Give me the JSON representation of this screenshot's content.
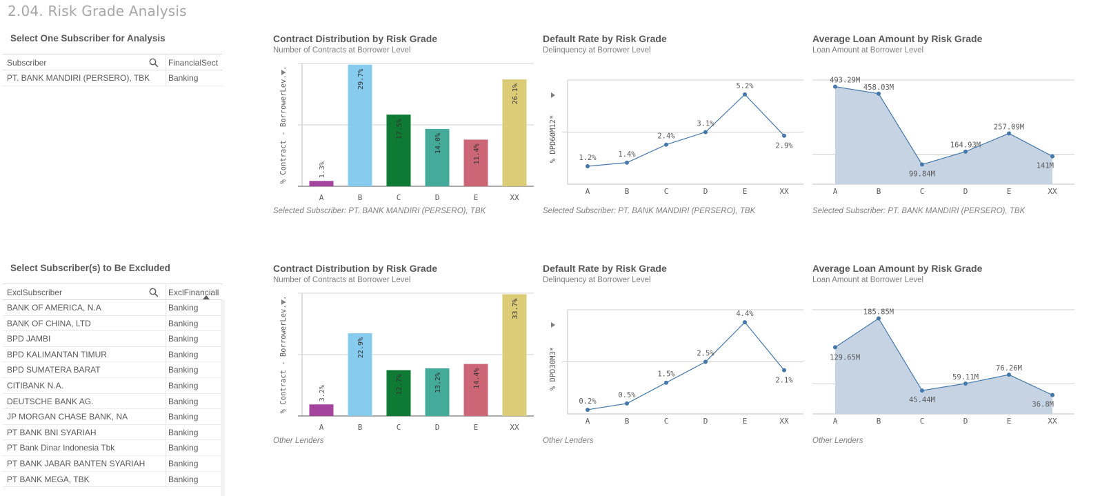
{
  "page": {
    "title": "2.04. Risk Grade Analysis"
  },
  "colors": {
    "A": "#a4449e",
    "B": "#87ccee",
    "C": "#0f7a34",
    "D": "#44aa99",
    "E": "#cc6677",
    "XX": "#ddcc77",
    "line": "#4477aa",
    "area": "#c5d3e3"
  },
  "selector1": {
    "title": "Select One Subscriber for Analysis",
    "col1": "Subscriber",
    "col2": "FinancialSect",
    "rows": [
      {
        "name": "PT. BANK MANDIRI (PERSERO), TBK",
        "sector": "Banking"
      }
    ]
  },
  "selector2": {
    "title": "Select Subscriber(s) to Be Excluded",
    "col1": "ExclSubscriber",
    "col2": "ExclFinanciall",
    "rows": [
      {
        "name": "BANK OF AMERICA, N.A",
        "sector": "Banking"
      },
      {
        "name": "BANK OF CHINA, LTD",
        "sector": "Banking"
      },
      {
        "name": "BPD JAMBI",
        "sector": "Banking"
      },
      {
        "name": "BPD KALIMANTAN TIMUR",
        "sector": "Banking"
      },
      {
        "name": "BPD SUMATERA BARAT",
        "sector": "Banking"
      },
      {
        "name": "CITIBANK N.A.",
        "sector": "Banking"
      },
      {
        "name": "DEUTSCHE BANK AG.",
        "sector": "Banking"
      },
      {
        "name": "JP MORGAN CHASE BANK, NA",
        "sector": "Banking"
      },
      {
        "name": "PT BANK BNI SYARIAH",
        "sector": "Banking"
      },
      {
        "name": "PT Bank Dinar Indonesia Tbk",
        "sector": "Banking"
      },
      {
        "name": "PT BANK JABAR BANTEN SYARIAH",
        "sector": "Banking"
      },
      {
        "name": "PT BANK MEGA, TBK",
        "sector": "Banking"
      }
    ]
  },
  "charts": {
    "bar1": {
      "title": "Contract Distribution by Risk Grade",
      "subtitle": "Number of Contracts at Borrower Level",
      "footer": "Selected Subscriber: PT. BANK MANDIRI (PERSERO), TBK",
      "ylabel": "% Contract - BorrowerLev..."
    },
    "line1": {
      "title": "Default Rate by Risk Grade",
      "subtitle": "Delinquency at Borrower Level",
      "footer": "Selected Subscriber: PT. BANK MANDIRI (PERSERO), TBK",
      "ylabel": "% DPD60M12*"
    },
    "area1": {
      "title": "Average Loan Amount by Risk Grade",
      "subtitle": "Loan Amount at Borrower Level",
      "footer": "Selected Subscriber: PT. BANK MANDIRI (PERSERO), TBK"
    },
    "bar2": {
      "title": "Contract Distribution by Risk Grade",
      "subtitle": "Number of Contracts at Borrower Level",
      "footer": "Other Lenders",
      "ylabel": "% Contract - BorrowerLev..."
    },
    "line2": {
      "title": "Default Rate by Risk Grade",
      "subtitle": "Delinquency at Borrower Level",
      "footer": "Other Lenders",
      "ylabel": "% DPD30M3*"
    },
    "area2": {
      "title": "Average Loan Amount by Risk Grade",
      "subtitle": "Loan Amount at Borrower Level",
      "footer": "Other Lenders"
    }
  },
  "chart_data": [
    {
      "id": "bar1",
      "type": "bar",
      "categories": [
        "A",
        "B",
        "C",
        "D",
        "E",
        "XX"
      ],
      "values": [
        1.3,
        29.7,
        17.5,
        14.0,
        11.4,
        26.1
      ],
      "labels": [
        "1.3%",
        "29.7%",
        "17.5%",
        "14.0%",
        "11.4%",
        "26.1%"
      ],
      "ylim": [
        0,
        30
      ],
      "grid": true
    },
    {
      "id": "line1",
      "type": "line",
      "categories": [
        "A",
        "B",
        "C",
        "D",
        "E",
        "XX"
      ],
      "values": [
        1.2,
        1.4,
        2.4,
        3.1,
        5.2,
        2.9
      ],
      "labels": [
        "1.2%",
        "1.4%",
        "2.4%",
        "3.1%",
        "5.2%",
        "2.9%"
      ],
      "ylim": [
        0.2,
        6.0
      ],
      "grid": true
    },
    {
      "id": "area1",
      "type": "area",
      "categories": [
        "A",
        "B",
        "C",
        "D",
        "E",
        "XX"
      ],
      "values": [
        493.29,
        458.03,
        99.84,
        164.93,
        257.09,
        141
      ],
      "labels": [
        "493.29M",
        "458.03M",
        "99.84M",
        "164.93M",
        "257.09M",
        "141M"
      ],
      "ylim": [
        0,
        520
      ],
      "grid": true
    },
    {
      "id": "bar2",
      "type": "bar",
      "categories": [
        "A",
        "B",
        "C",
        "D",
        "E",
        "XX"
      ],
      "values": [
        3.2,
        22.9,
        12.7,
        13.2,
        14.4,
        33.7
      ],
      "labels": [
        "3.2%",
        "22.9%",
        "12.7%",
        "13.2%",
        "14.4%",
        "33.7%"
      ],
      "ylim": [
        0,
        34
      ],
      "grid": true
    },
    {
      "id": "line2",
      "type": "line",
      "categories": [
        "A",
        "B",
        "C",
        "D",
        "E",
        "XX"
      ],
      "values": [
        0.2,
        0.5,
        1.5,
        2.5,
        4.4,
        2.1
      ],
      "labels": [
        "0.2%",
        "0.5%",
        "1.5%",
        "2.5%",
        "4.4%",
        "2.1%"
      ],
      "ylim": [
        0,
        5.0
      ],
      "grid": true
    },
    {
      "id": "area2",
      "type": "area",
      "categories": [
        "A",
        "B",
        "C",
        "D",
        "E",
        "XX"
      ],
      "values": [
        129.65,
        185.85,
        45.44,
        59.11,
        76.26,
        36.8
      ],
      "labels": [
        "129.65M",
        "185.85M",
        "45.44M",
        "59.11M",
        "76.26M",
        "36.8M"
      ],
      "ylim": [
        0,
        200
      ],
      "grid": true
    }
  ]
}
